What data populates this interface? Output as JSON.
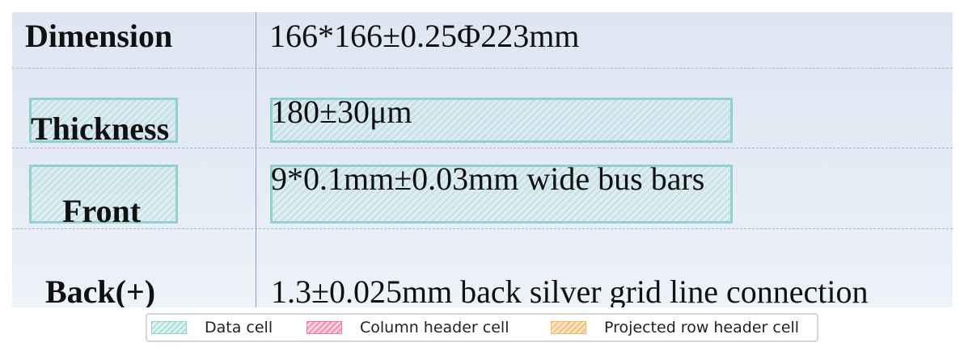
{
  "table": {
    "rows": [
      {
        "header": "Dimension",
        "value": "166*166±0.25Φ223mm"
      },
      {
        "header": "Thickness",
        "value": "180±30μm"
      },
      {
        "header": "Front",
        "value": "9*0.1mm±0.03mm wide bus bars"
      },
      {
        "header": "Back(+)",
        "value": "1.3±0.025mm back silver grid line connection"
      }
    ]
  },
  "legend": {
    "items": [
      {
        "label": "Data cell",
        "color": "#a9e0dc"
      },
      {
        "label": "Column header cell",
        "color": "#f48bb3"
      },
      {
        "label": "Projected row header cell",
        "color": "#f7c07a"
      }
    ]
  }
}
